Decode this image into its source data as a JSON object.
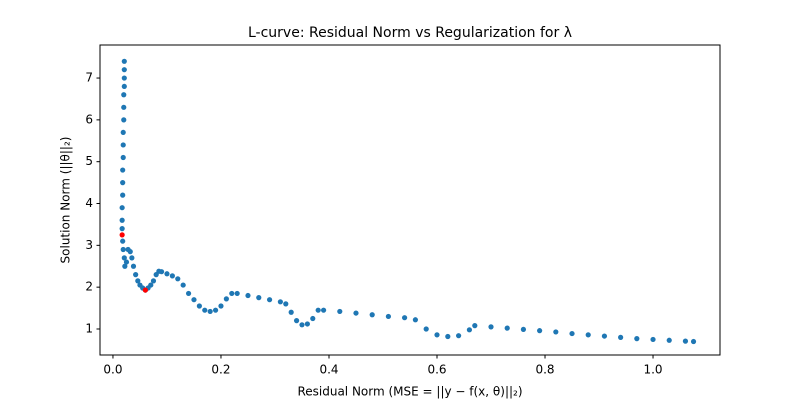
{
  "chart_data": {
    "type": "scatter",
    "title": "L-curve: Residual Norm vs Regularization for λ",
    "x_label": "Residual Norm (MSE = ||y − f(x, θ)||₂)",
    "y_label": "Solution Norm (||θ||₂)",
    "xlim": [
      -0.024,
      1.124
    ],
    "ylim": [
      0.378,
      7.79
    ],
    "xticks": [
      {
        "value": 0,
        "label": "0.0"
      },
      0.2,
      0.4,
      0.6,
      0.8,
      {
        "value": 1,
        "label": "1.0"
      }
    ],
    "yticks": [
      1,
      2,
      3,
      4,
      5,
      6,
      7
    ],
    "series": [
      {
        "color": "#1f77b4",
        "x": [
          0.021,
          0.021,
          0.021,
          0.021,
          0.02,
          0.02,
          0.02,
          0.019,
          0.019,
          0.019,
          0.018,
          0.018,
          0.018,
          0.017,
          0.017,
          0.017,
          0.018,
          0.019,
          0.021,
          0.022,
          0.025,
          0.028,
          0.032,
          0.035,
          0.038,
          0.042,
          0.046,
          0.05,
          0.055,
          0.06,
          0.065,
          0.07,
          0.075,
          0.08,
          0.085,
          0.09,
          0.1,
          0.11,
          0.12,
          0.13,
          0.14,
          0.15,
          0.16,
          0.17,
          0.18,
          0.19,
          0.2,
          0.21,
          0.22,
          0.23,
          0.25,
          0.27,
          0.29,
          0.31,
          0.32,
          0.33,
          0.34,
          0.35,
          0.36,
          0.37,
          0.38,
          0.39,
          0.42,
          0.45,
          0.48,
          0.51,
          0.54,
          0.56,
          0.58,
          0.6,
          0.62,
          0.64,
          0.66,
          0.67,
          0.7,
          0.73,
          0.76,
          0.79,
          0.82,
          0.85,
          0.88,
          0.91,
          0.94,
          0.97,
          1.0,
          1.03,
          1.06,
          1.075
        ],
        "values": [
          7.4,
          7.2,
          7.0,
          6.8,
          6.6,
          6.3,
          6.0,
          5.7,
          5.4,
          5.1,
          4.8,
          4.5,
          4.2,
          3.9,
          3.6,
          3.4,
          3.1,
          2.9,
          2.7,
          2.5,
          2.6,
          2.9,
          2.85,
          2.7,
          2.5,
          2.3,
          2.15,
          2.05,
          1.98,
          1.93,
          1.98,
          2.05,
          2.15,
          2.3,
          2.38,
          2.37,
          2.32,
          2.27,
          2.2,
          2.05,
          1.85,
          1.7,
          1.55,
          1.45,
          1.42,
          1.45,
          1.55,
          1.72,
          1.85,
          1.85,
          1.8,
          1.75,
          1.7,
          1.65,
          1.6,
          1.4,
          1.2,
          1.1,
          1.12,
          1.25,
          1.45,
          1.45,
          1.42,
          1.38,
          1.34,
          1.3,
          1.27,
          1.22,
          1.0,
          0.86,
          0.82,
          0.84,
          0.98,
          1.08,
          1.05,
          1.02,
          0.99,
          0.96,
          0.93,
          0.89,
          0.86,
          0.83,
          0.8,
          0.77,
          0.75,
          0.73,
          0.71,
          0.7
        ]
      },
      {
        "color": "#ff0000",
        "x": [
          0.017,
          0.06
        ],
        "values": [
          3.25,
          1.93
        ]
      }
    ]
  }
}
